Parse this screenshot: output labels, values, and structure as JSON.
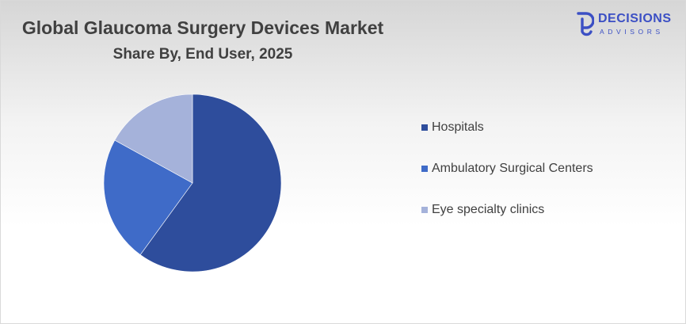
{
  "header": {
    "title": "Global Glaucoma Surgery Devices Market",
    "subtitle": "Share By, End User, 2025"
  },
  "logo": {
    "word": "DECISIONS",
    "sub": "ADVISORS",
    "icon": "decisions-advisors-logo-icon",
    "color": "#3b4fc4"
  },
  "chart_data": {
    "type": "pie",
    "title": "Global Glaucoma Surgery Devices Market",
    "subtitle": "Share By, End User, 2025",
    "categories": [
      "Hospitals",
      "Ambulatory Surgical Centers",
      "Eye specialty clinics"
    ],
    "values": [
      60,
      23,
      17
    ],
    "colors": [
      "#2e4d9c",
      "#3f6bc8",
      "#a5b2da"
    ],
    "start_angle_deg": 0,
    "direction": "clockwise",
    "legend_position": "right"
  }
}
